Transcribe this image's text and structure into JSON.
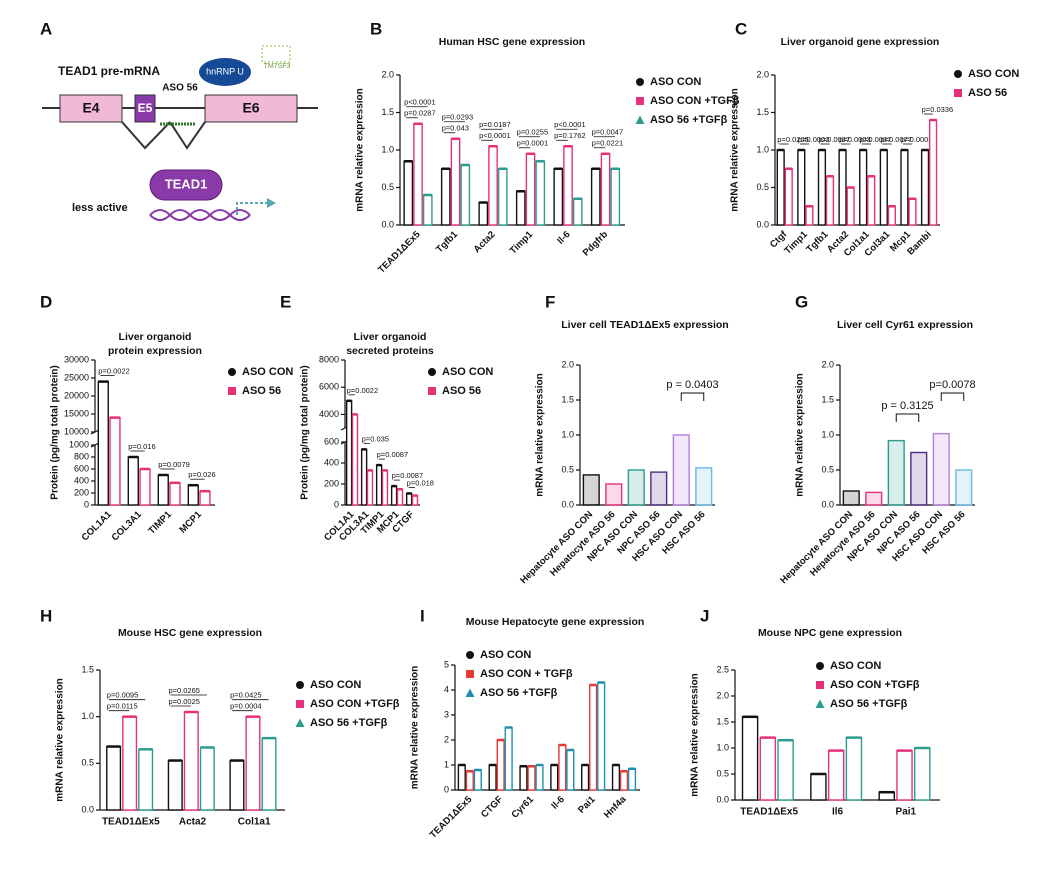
{
  "diagram": {
    "panel": "A",
    "pre_mrna": "TEAD1 pre-mRNA",
    "exons": [
      "E4",
      "E5",
      "E6"
    ],
    "aso": "ASO 56",
    "protein": "hnRNP U",
    "membrane": "TM7SF3",
    "tead": "TEAD1",
    "note": "less active"
  },
  "chart_data": [
    {
      "type": "bar",
      "panel": "B",
      "title": [
        "Human HSC gene expression"
      ],
      "ylabel": "mRNA relative expression",
      "categories": [
        "TEAD1ΔEx5",
        "Tgfb1",
        "Acta2",
        "Timp1",
        "Il-6",
        "Pdgfrb"
      ],
      "series": [
        {
          "name": "ASO CON",
          "color": "#111111",
          "values": [
            0.85,
            0.75,
            0.3,
            0.45,
            0.75,
            0.75
          ]
        },
        {
          "name": "ASO CON +TGFβ",
          "color": "#e6317a",
          "values": [
            1.35,
            1.15,
            1.05,
            0.95,
            1.05,
            0.95
          ]
        },
        {
          "name": "ASO 56 +TGFβ",
          "color": "#2a9d8f",
          "values": [
            0.4,
            0.8,
            0.75,
            0.85,
            0.35,
            0.75
          ]
        }
      ],
      "pvalues": [
        [
          "p=0.0287",
          "p<0.0001"
        ],
        [
          "p=0.043",
          "p=0.0293"
        ],
        [
          "p<0.0001",
          "p=0.0187"
        ],
        [
          "p=0.0001",
          "p=0.0255"
        ],
        [
          "p=0.1762",
          "p<0.0001"
        ],
        [
          "p=0.0221",
          "p=0.0047"
        ]
      ],
      "ylim": [
        0,
        2
      ],
      "yticks": [
        {
          "value": 0,
          "label": "0.0"
        },
        0.5,
        {
          "value": 1,
          "label": "1.0"
        },
        1.5,
        {
          "value": 2,
          "label": "2.0"
        }
      ]
    },
    {
      "type": "bar",
      "panel": "C",
      "title": [
        "Liver organoid gene expression"
      ],
      "ylabel": "mRNA relative expression",
      "categories": [
        "Ctgf",
        "Timp1",
        "Tgfb1",
        "Acta2",
        "Col1a1",
        "Col3a1",
        "Mcp1",
        "Bambi"
      ],
      "series": [
        {
          "name": "ASO CON",
          "color": "#111111",
          "values": [
            1.0,
            1.0,
            1.0,
            1.0,
            1.0,
            1.0,
            1.0,
            1.0
          ]
        },
        {
          "name": "ASO 56",
          "color": "#e6317a",
          "values": [
            0.75,
            0.25,
            0.65,
            0.5,
            0.65,
            0.25,
            0.35,
            1.4
          ]
        }
      ],
      "pvalues": [
        [
          "p=0.0205"
        ],
        [
          "p=0.0003"
        ],
        [
          "p=0.0037"
        ],
        [
          "p=0.0003"
        ],
        [
          "p=0.0037"
        ],
        [
          "p=0.0077"
        ],
        [
          "p=0.0003"
        ],
        [
          "p=0.0336"
        ]
      ],
      "ylim": [
        0,
        2
      ],
      "yticks": [
        {
          "value": 0,
          "label": "0.0"
        },
        0.5,
        {
          "value": 1,
          "label": "1.0"
        },
        1.5,
        {
          "value": 2,
          "label": "2.0"
        }
      ]
    },
    {
      "type": "bar",
      "panel": "D",
      "title": [
        "Liver organoid",
        "protein expression"
      ],
      "ylabel": "Protein (pg/mg total protein)",
      "categories": [
        "COL1A1",
        "COL3A1",
        "TIMP1",
        "MCP1"
      ],
      "series": [
        {
          "name": "ASO CON",
          "color": "#111111",
          "values": [
            24000,
            800,
            500,
            330
          ]
        },
        {
          "name": "ASO 56",
          "color": "#e6317a",
          "values": [
            14000,
            600,
            370,
            230
          ]
        }
      ],
      "pvalues": [
        [
          "p=0.0022"
        ],
        [
          "p=0.016"
        ],
        [
          "p=0.0079"
        ],
        [
          "p=0.026"
        ]
      ],
      "segments": [
        {
          "ylim": [
            0,
            1000
          ],
          "yticks": [
            0,
            200,
            400,
            600,
            800,
            1000
          ]
        },
        {
          "ylim": [
            10000,
            30000
          ],
          "yticks": [
            10000,
            15000,
            20000,
            25000,
            30000
          ]
        }
      ]
    },
    {
      "type": "bar",
      "panel": "E",
      "title": [
        "Liver organoid",
        "secreted proteins"
      ],
      "ylabel": "Protein (pg/mg total protein)",
      "categories": [
        "COL1A1",
        "COL3A1",
        "TIMP1",
        "MCP1",
        "CTGF"
      ],
      "series": [
        {
          "name": "ASO CON",
          "color": "#111111",
          "values": [
            5000,
            530,
            380,
            180,
            110
          ]
        },
        {
          "name": "ASO 56",
          "color": "#e6317a",
          "values": [
            4000,
            330,
            330,
            150,
            90
          ]
        }
      ],
      "pvalues": [
        [
          "p=0.0022"
        ],
        [
          "p=0.035"
        ],
        [
          "p=0.0087"
        ],
        [
          "p=0.0087"
        ],
        [
          "p=0.018"
        ]
      ],
      "segments": [
        {
          "ylim": [
            0,
            600
          ],
          "yticks": [
            0,
            200,
            400,
            600
          ]
        },
        {
          "ylim": [
            3000,
            8000
          ],
          "yticks": [
            4000,
            6000,
            8000
          ]
        }
      ]
    },
    {
      "type": "bar",
      "panel": "F",
      "title": [
        "Liver cell TEAD1ΔEx5 expression"
      ],
      "ylabel": "mRNA relative expression",
      "categories": [
        "Hepatocyte ASO CON",
        "Hepatocyte ASO 56",
        "NPC ASO CON",
        "NPC ASO 56",
        "HSC ASO CON",
        "HSC ASO 56"
      ],
      "values": [
        0.43,
        0.3,
        0.5,
        0.47,
        1.0,
        0.53
      ],
      "colors": [
        "#111111",
        "#e6317a",
        "#2a9d8f",
        "#4b2e83",
        "#b57edc",
        "#6ab7e6"
      ],
      "annotations": [
        "p = 0.0403"
      ],
      "ylim": [
        0,
        2
      ],
      "yticks": [
        {
          "value": 0,
          "label": "0.0"
        },
        0.5,
        {
          "value": 1,
          "label": "1.0"
        },
        1.5,
        {
          "value": 2,
          "label": "2.0"
        }
      ]
    },
    {
      "type": "bar",
      "panel": "G",
      "title": [
        "Liver cell Cyr61 expression"
      ],
      "ylabel": "mRNA relative expression",
      "categories": [
        "Hepatocyte ASO CON",
        "Hepatocyte ASO 56",
        "NPC ASO CON",
        "NPC ASO 56",
        "HSC ASO CON",
        "HSC ASO 56"
      ],
      "values": [
        0.2,
        0.18,
        0.92,
        0.75,
        1.02,
        0.5
      ],
      "colors": [
        "#111111",
        "#e6317a",
        "#2a9d8f",
        "#4b2e83",
        "#b57edc",
        "#6ab7e6"
      ],
      "annotations": [
        "p = 0.3125",
        "p=0.0078"
      ],
      "ylim": [
        0,
        2
      ],
      "yticks": [
        {
          "value": 0,
          "label": "0.0"
        },
        0.5,
        {
          "value": 1,
          "label": "1.0"
        },
        1.5,
        {
          "value": 2,
          "label": "2.0"
        }
      ]
    },
    {
      "type": "bar",
      "panel": "H",
      "title": [
        "Mouse HSC gene expression"
      ],
      "ylabel": "mRNA relative expression",
      "categories": [
        "TEAD1ΔEx5",
        "Acta2",
        "Col1a1"
      ],
      "series": [
        {
          "name": "ASO CON",
          "color": "#111111",
          "values": [
            0.68,
            0.53,
            0.53
          ]
        },
        {
          "name": "ASO CON +TGFβ",
          "color": "#e6317a",
          "values": [
            1.0,
            1.05,
            1.0
          ]
        },
        {
          "name": "ASO 56 +TGFβ",
          "color": "#2a9d8f",
          "values": [
            0.65,
            0.67,
            0.77
          ]
        }
      ],
      "pvalues": [
        [
          "p=0.0115",
          "p=0.0095"
        ],
        [
          "p=0.0025",
          "p=0.0265"
        ],
        [
          "p=0.0004",
          "p=0.0425"
        ]
      ],
      "ylim": [
        0,
        1.5
      ],
      "yticks": [
        {
          "value": 0,
          "label": "0.0"
        },
        0.5,
        {
          "value": 1,
          "label": "1.0"
        },
        1.5
      ]
    },
    {
      "type": "bar",
      "panel": "I",
      "title": [
        "Mouse Hepatocyte gene expression"
      ],
      "ylabel": "mRNA relative expression",
      "categories": [
        "TEAD1ΔEx5",
        "CTGF",
        "Cyr61",
        "Il-6",
        "Pai1",
        "Hnf4a"
      ],
      "series": [
        {
          "name": "ASO CON",
          "color": "#111111",
          "values": [
            1.0,
            1.0,
            0.95,
            1.0,
            1.0,
            1.0
          ]
        },
        {
          "name": "ASO CON + TGFβ",
          "color": "#e53935",
          "values": [
            0.75,
            2.0,
            0.95,
            1.8,
            4.2,
            0.75
          ]
        },
        {
          "name": "ASO 56 +TGFβ",
          "color": "#1f8fb0",
          "values": [
            0.8,
            2.5,
            1.0,
            1.6,
            4.3,
            0.85
          ]
        }
      ],
      "ylim": [
        0,
        5
      ],
      "yticks": [
        0,
        1,
        2,
        3,
        4,
        5
      ]
    },
    {
      "type": "bar",
      "panel": "J",
      "title": [
        "Mouse NPC gene expression"
      ],
      "ylabel": "mRNA relative expression",
      "categories": [
        "TEAD1ΔEx5",
        "Il6",
        "Pai1"
      ],
      "series": [
        {
          "name": "ASO CON",
          "color": "#111111",
          "values": [
            1.6,
            0.5,
            0.15
          ]
        },
        {
          "name": "ASO CON +TGFβ",
          "color": "#e6317a",
          "values": [
            1.2,
            0.95,
            0.95
          ]
        },
        {
          "name": "ASO 56 +TGFβ",
          "color": "#2a9d8f",
          "values": [
            1.15,
            1.2,
            1.0
          ]
        }
      ],
      "ylim": [
        0,
        2.5
      ],
      "yticks": [
        {
          "value": 0,
          "label": "0.0"
        },
        0.5,
        {
          "value": 1,
          "label": "1.0"
        },
        1.5,
        {
          "value": 2,
          "label": "2.0"
        },
        2.5
      ]
    }
  ]
}
